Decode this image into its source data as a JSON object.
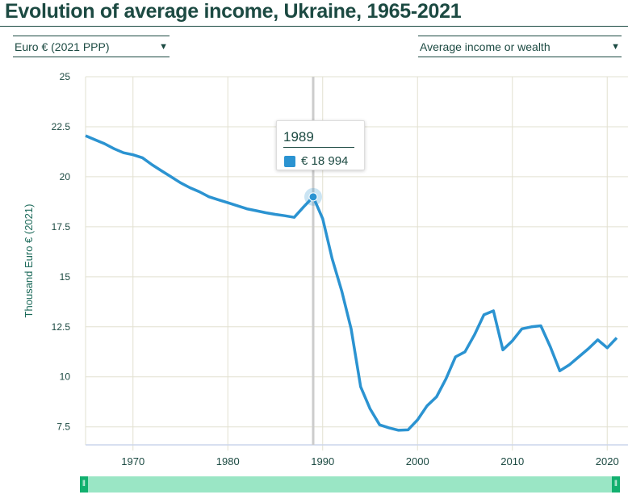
{
  "title": "Evolution of average income, Ukraine, 1965-2021",
  "controls": {
    "currency": "Euro € (2021 PPP)",
    "indicator": "Average income or wealth",
    "arrow": "▼"
  },
  "tooltip": {
    "year": "1989",
    "value": "€ 18 994"
  },
  "colors": {
    "line": "#2b93d1",
    "title": "#1c4a42",
    "navigator": "#9ae6c5",
    "handle": "#12b06f"
  },
  "chart_data": {
    "type": "line",
    "title": "Evolution of average income, Ukraine, 1965-2021",
    "ylabel": "Thousand Euro € (2021)",
    "xlabel": "",
    "xlim": [
      1965,
      2021
    ],
    "ylim": [
      6.6,
      25
    ],
    "xticks": [
      1970,
      1980,
      1990,
      2000,
      2010,
      2020
    ],
    "yticks": [
      7.5,
      10,
      12.5,
      15,
      17.5,
      20,
      22.5,
      25
    ],
    "ytick_labels": [
      "7.5",
      "10",
      "12.5",
      "15",
      "17.5",
      "20",
      "22.5",
      "25"
    ],
    "grid": true,
    "legend": "none",
    "x": [
      1965,
      1966,
      1967,
      1968,
      1969,
      1970,
      1971,
      1972,
      1973,
      1974,
      1975,
      1976,
      1977,
      1978,
      1979,
      1980,
      1981,
      1982,
      1983,
      1984,
      1985,
      1986,
      1987,
      1988,
      1989,
      1990,
      1991,
      1992,
      1993,
      1994,
      1995,
      1996,
      1997,
      1998,
      1999,
      2000,
      2001,
      2002,
      2003,
      2004,
      2005,
      2006,
      2007,
      2008,
      2009,
      2010,
      2011,
      2012,
      2013,
      2014,
      2015,
      2016,
      2017,
      2018,
      2019,
      2020,
      2021
    ],
    "values": [
      22.05,
      21.85,
      21.65,
      21.4,
      21.2,
      21.1,
      20.95,
      20.6,
      20.3,
      20.0,
      19.7,
      19.45,
      19.25,
      19.0,
      18.85,
      18.7,
      18.55,
      18.4,
      18.3,
      18.2,
      18.12,
      18.05,
      17.97,
      18.5,
      18.994,
      17.9,
      15.9,
      14.3,
      12.4,
      9.5,
      8.4,
      7.6,
      7.45,
      7.33,
      7.35,
      7.85,
      8.55,
      9.0,
      9.9,
      11.0,
      11.25,
      12.1,
      13.1,
      13.3,
      11.35,
      11.8,
      12.4,
      12.5,
      12.55,
      11.5,
      10.3,
      10.6,
      11.0,
      11.4,
      11.85,
      11.45,
      11.95
    ],
    "highlight": {
      "x": 1989,
      "value": 18.994
    }
  }
}
